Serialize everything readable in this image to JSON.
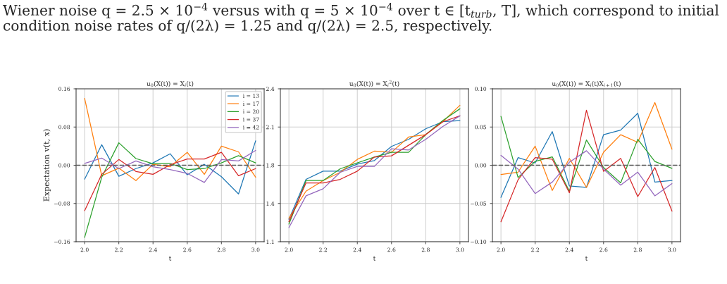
{
  "chart_data": [
    {
      "type": "line",
      "title": "u$_{0}$(X(t)) = X$_{i}$(t)",
      "xlabel": "t",
      "ylabel": "Expectation v(t, x)",
      "annotations": [
        "Wiener noise q = 2.5 × 10$^{−4}$ versus with q = 5 × 10$^{−4}$ over t ∈ [t$_{turb}$, T], which correspond to initial",
        "condition noise rates of q/(2λ) = 1.25 and q/(2λ) = 2.5, respectively."
      ],
      "x": [
        2.0,
        2.1,
        2.2,
        2.3,
        2.4,
        2.5,
        2.6,
        2.7,
        2.8,
        2.9,
        3.0
      ],
      "xlim": [
        1.95,
        3.05
      ],
      "ylim": [
        -0.16,
        0.16
      ],
      "xticks": [
        {
          "value": 2.0,
          "label": "2.0"
        },
        {
          "value": 2.2,
          "label": "2.2"
        },
        {
          "value": 2.4,
          "label": "2.4"
        },
        {
          "value": 2.6,
          "label": "2.6"
        },
        {
          "value": 2.8,
          "label": "2.8"
        },
        {
          "value": 3.0,
          "label": "3.0"
        }
      ],
      "yticks": [
        {
          "value": -0.16,
          "label": "−0.16"
        },
        {
          "value": -0.08,
          "label": "−0.08"
        },
        {
          "value": 0,
          "label": "0.00"
        },
        {
          "value": 0.08,
          "label": "0.08"
        },
        {
          "value": 0.16,
          "label": "0.16"
        }
      ],
      "grid": true,
      "legend": "top right",
      "ref_lines": [
        {
          "axis": "y",
          "value": 0,
          "color": "#555555",
          "line_style": "dashed"
        }
      ],
      "series": [
        {
          "name": "i = 13",
          "color": "#1f77b4",
          "values": [
            -0.029,
            0.043,
            -0.023,
            -0.007,
            0.005,
            0.024,
            -0.02,
            0.002,
            -0.024,
            -0.06,
            0.051
          ]
        },
        {
          "name": "i = 17",
          "color": "#ff7f0e",
          "values": [
            0.14,
            -0.022,
            -0.006,
            -0.032,
            0.002,
            -0.003,
            0.027,
            -0.019,
            0.04,
            0.028,
            -0.025
          ]
        },
        {
          "name": "i = 20",
          "color": "#2ca02c",
          "values": [
            -0.151,
            -0.025,
            0.047,
            0.014,
            0.003,
            0.004,
            -0.009,
            -0.007,
            0.005,
            0.02,
            0.005
          ]
        },
        {
          "name": "i = 37",
          "color": "#d62728",
          "values": [
            -0.095,
            -0.019,
            0.012,
            -0.013,
            -0.019,
            0.001,
            0.013,
            0.013,
            0.027,
            -0.022,
            -0.007
          ]
        },
        {
          "name": "i = 42",
          "color": "#9467bd",
          "values": [
            0.004,
            0.015,
            -0.007,
            0.009,
            -0.003,
            -0.009,
            -0.017,
            -0.036,
            0.012,
            0.009,
            0.031
          ]
        }
      ]
    },
    {
      "type": "line",
      "title": "u$_{0}$(X(t)) = X$_{i}$$^{2}$(t)",
      "xlabel": "t",
      "x": [
        2.0,
        2.1,
        2.2,
        2.3,
        2.4,
        2.5,
        2.6,
        2.7,
        2.8,
        2.9,
        3.0
      ],
      "xlim": [
        1.95,
        3.05
      ],
      "ylim": [
        1.1,
        2.4
      ],
      "xticks": [
        {
          "value": 2.0,
          "label": "2.0"
        },
        {
          "value": 2.2,
          "label": "2.2"
        },
        {
          "value": 2.4,
          "label": "2.4"
        },
        {
          "value": 2.6,
          "label": "2.6"
        },
        {
          "value": 2.8,
          "label": "2.8"
        },
        {
          "value": 3.0,
          "label": "3.0"
        }
      ],
      "yticks": [
        {
          "value": 1.1,
          "label": "1.1"
        },
        {
          "value": 1.425,
          "label": "1.4"
        },
        {
          "value": 1.75,
          "label": "1.8"
        },
        {
          "value": 2.075,
          "label": "2.1"
        },
        {
          "value": 2.4,
          "label": "2.4"
        }
      ],
      "grid": true,
      "series": [
        {
          "color": "#1f77b4",
          "values": [
            1.29,
            1.63,
            1.7,
            1.7,
            1.76,
            1.79,
            1.91,
            1.97,
            2.06,
            2.12,
            2.13
          ]
        },
        {
          "color": "#ff7f0e",
          "values": [
            1.3,
            1.53,
            1.62,
            1.69,
            1.8,
            1.87,
            1.86,
            1.99,
            2.01,
            2.12,
            2.26
          ]
        },
        {
          "color": "#2ca02c",
          "values": [
            1.25,
            1.62,
            1.62,
            1.72,
            1.77,
            1.82,
            1.86,
            1.86,
            2.01,
            2.13,
            2.23
          ]
        },
        {
          "color": "#d62728",
          "values": [
            1.27,
            1.6,
            1.6,
            1.63,
            1.7,
            1.82,
            1.83,
            1.92,
            2.01,
            2.12,
            2.17
          ]
        },
        {
          "color": "#9467bd",
          "values": [
            1.22,
            1.49,
            1.55,
            1.69,
            1.74,
            1.74,
            1.89,
            1.88,
            1.97,
            2.08,
            2.17
          ]
        }
      ]
    },
    {
      "type": "line",
      "title": "u$_{0}$(X(t)) = X$_{i}$(t)X$_{i+1}$(t)",
      "xlabel": "t",
      "x": [
        2.0,
        2.1,
        2.2,
        2.3,
        2.4,
        2.5,
        2.6,
        2.7,
        2.8,
        2.9,
        3.0
      ],
      "xlim": [
        1.95,
        3.05
      ],
      "ylim": [
        -0.1,
        0.1
      ],
      "xticks": [
        {
          "value": 2.0,
          "label": "2.0"
        },
        {
          "value": 2.2,
          "label": "2.2"
        },
        {
          "value": 2.4,
          "label": "2.4"
        },
        {
          "value": 2.6,
          "label": "2.6"
        },
        {
          "value": 2.8,
          "label": "2.8"
        },
        {
          "value": 3.0,
          "label": "3.0"
        }
      ],
      "yticks": [
        {
          "value": -0.1,
          "label": "−0.10"
        },
        {
          "value": -0.05,
          "label": "−0.05"
        },
        {
          "value": 0,
          "label": "0.00"
        },
        {
          "value": 0.05,
          "label": "0.05"
        },
        {
          "value": 0.1,
          "label": "0.10"
        }
      ],
      "grid": true,
      "ref_lines": [
        {
          "axis": "y",
          "value": 0,
          "color": "#555555",
          "line_style": "dashed"
        }
      ],
      "series": [
        {
          "color": "#1f77b4",
          "values": [
            -0.042,
            0.01,
            0.003,
            0.044,
            -0.027,
            -0.029,
            0.04,
            0.046,
            0.068,
            -0.022,
            -0.02
          ]
        },
        {
          "color": "#ff7f0e",
          "values": [
            -0.012,
            -0.009,
            0.025,
            -0.033,
            0.009,
            -0.029,
            0.017,
            0.04,
            0.03,
            0.082,
            0.021
          ]
        },
        {
          "color": "#2ca02c",
          "values": [
            0.064,
            -0.016,
            0.005,
            0.011,
            -0.034,
            0.033,
            -0.003,
            -0.023,
            0.034,
            0.005,
            -0.004
          ]
        },
        {
          "color": "#d62728",
          "values": [
            -0.074,
            -0.019,
            0.01,
            0.008,
            -0.036,
            0.072,
            -0.008,
            0.009,
            -0.041,
            -0.003,
            -0.06
          ]
        },
        {
          "color": "#9467bd",
          "values": [
            0.013,
            -0.005,
            -0.037,
            -0.022,
            0.004,
            0.019,
            -0.005,
            -0.026,
            -0.009,
            -0.04,
            -0.024
          ]
        }
      ]
    }
  ]
}
